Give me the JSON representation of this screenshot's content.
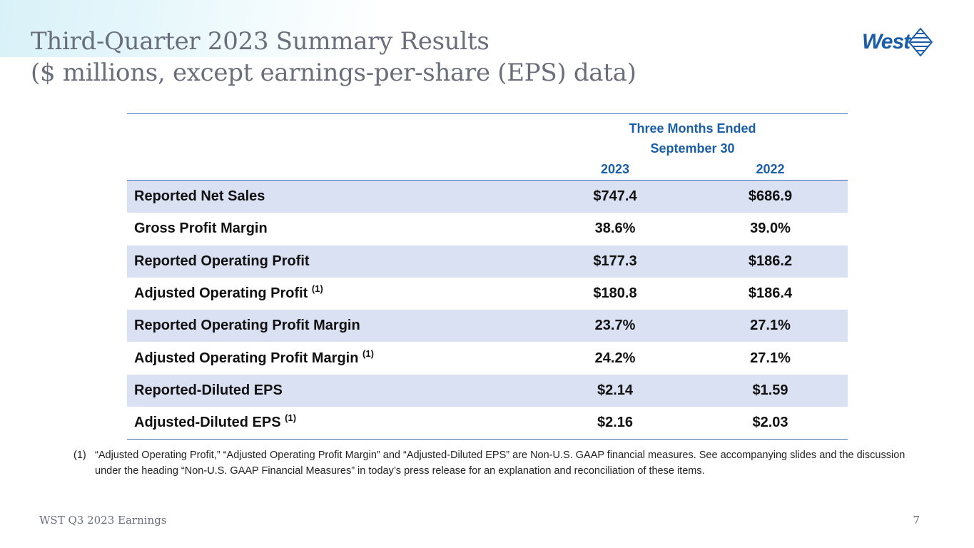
{
  "slide": {
    "title_line1": "Third-Quarter 2023 Summary Results",
    "title_line2": "($ millions, except earnings-per-share (EPS) data)",
    "logo_text": "West",
    "brand_color": "#1a5ea8"
  },
  "table": {
    "group_header_line1": "Three Months Ended",
    "group_header_line2": "September 30",
    "columns": [
      "2023",
      "2022"
    ],
    "rows": [
      {
        "label": "Reported Net Sales",
        "note": "",
        "v2023": "$747.4",
        "v2022": "$686.9"
      },
      {
        "label": "Gross Profit Margin",
        "note": "",
        "v2023": "38.6%",
        "v2022": "39.0%"
      },
      {
        "label": "Reported Operating Profit",
        "note": "",
        "v2023": "$177.3",
        "v2022": "$186.2"
      },
      {
        "label": "Adjusted Operating Profit",
        "note": "(1)",
        "v2023": "$180.8",
        "v2022": "$186.4"
      },
      {
        "label": "Reported Operating Profit Margin",
        "note": "",
        "v2023": "23.7%",
        "v2022": "27.1%"
      },
      {
        "label": "Adjusted Operating Profit Margin",
        "note": "(1)",
        "v2023": "24.2%",
        "v2022": "27.1%"
      },
      {
        "label": "Reported-Diluted EPS",
        "note": "",
        "v2023": "$2.14",
        "v2022": "$1.59"
      },
      {
        "label": "Adjusted-Diluted EPS",
        "note": "(1)",
        "v2023": "$2.16",
        "v2022": "$2.03"
      }
    ]
  },
  "footnote": {
    "marker": "(1)",
    "text": "“Adjusted Operating Profit,” “Adjusted Operating Profit Margin” and “Adjusted-Diluted EPS” are Non-U.S. GAAP financial measures. See accompanying slides and the discussion under the heading “Non-U.S. GAAP Financial Measures” in today’s press release for an explanation and reconciliation of these items."
  },
  "footer": {
    "left": "WST Q3 2023 Earnings",
    "page_number": "7"
  }
}
